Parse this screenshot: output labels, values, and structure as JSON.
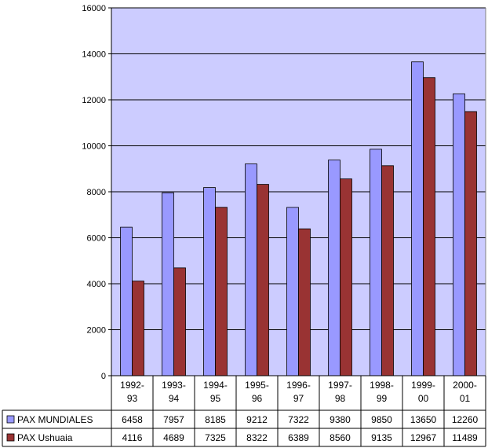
{
  "chart_data": {
    "type": "bar",
    "categories": [
      [
        "1992-",
        "93"
      ],
      [
        "1993-",
        "94"
      ],
      [
        "1994-",
        "95"
      ],
      [
        "1995-",
        "96"
      ],
      [
        "1996-",
        "97"
      ],
      [
        "1997-",
        "98"
      ],
      [
        "1998-",
        "99"
      ],
      [
        "1999-",
        "00"
      ],
      [
        "2000-",
        "01"
      ]
    ],
    "series": [
      {
        "name": "PAX MUNDIALES",
        "color": "#9999ff",
        "values": [
          6458,
          7957,
          8185,
          9212,
          7322,
          9380,
          9850,
          13650,
          12260
        ]
      },
      {
        "name": "PAX Ushuaia",
        "color": "#993333",
        "values": [
          4116,
          4689,
          7325,
          8322,
          6389,
          8560,
          9135,
          12967,
          11489
        ]
      }
    ],
    "ylim": [
      0,
      16000
    ],
    "yticks": [
      0,
      2000,
      4000,
      6000,
      8000,
      10000,
      12000,
      14000,
      16000
    ],
    "plot_background": "#ccccff",
    "grid": true,
    "data_table": true,
    "legend": "data-table-left"
  }
}
